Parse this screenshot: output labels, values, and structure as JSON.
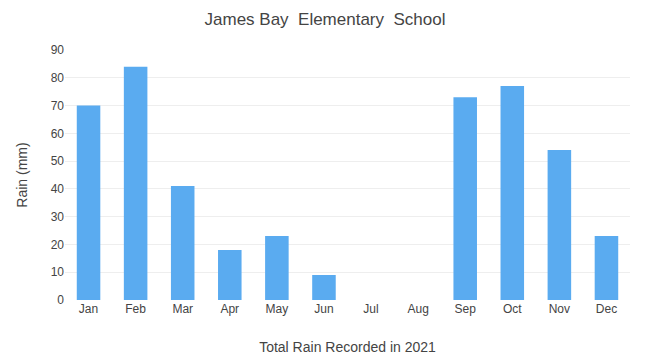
{
  "chart_data": {
    "type": "bar",
    "title": "James Bay  Elementary  School",
    "xlabel": "Total Rain Recorded in 2021",
    "ylabel": "Rain (mm)",
    "categories": [
      "Jan",
      "Feb",
      "Mar",
      "Apr",
      "May",
      "Jun",
      "Jul",
      "Aug",
      "Sep",
      "Oct",
      "Nov",
      "Dec"
    ],
    "values": [
      70,
      84,
      41,
      18,
      23,
      9,
      0,
      0,
      73,
      77,
      54,
      23
    ],
    "color": "#5aabf0",
    "ylim": [
      0,
      90
    ],
    "yticks": [
      0,
      10,
      20,
      30,
      40,
      50,
      60,
      70,
      80,
      90
    ],
    "grid": true
  }
}
